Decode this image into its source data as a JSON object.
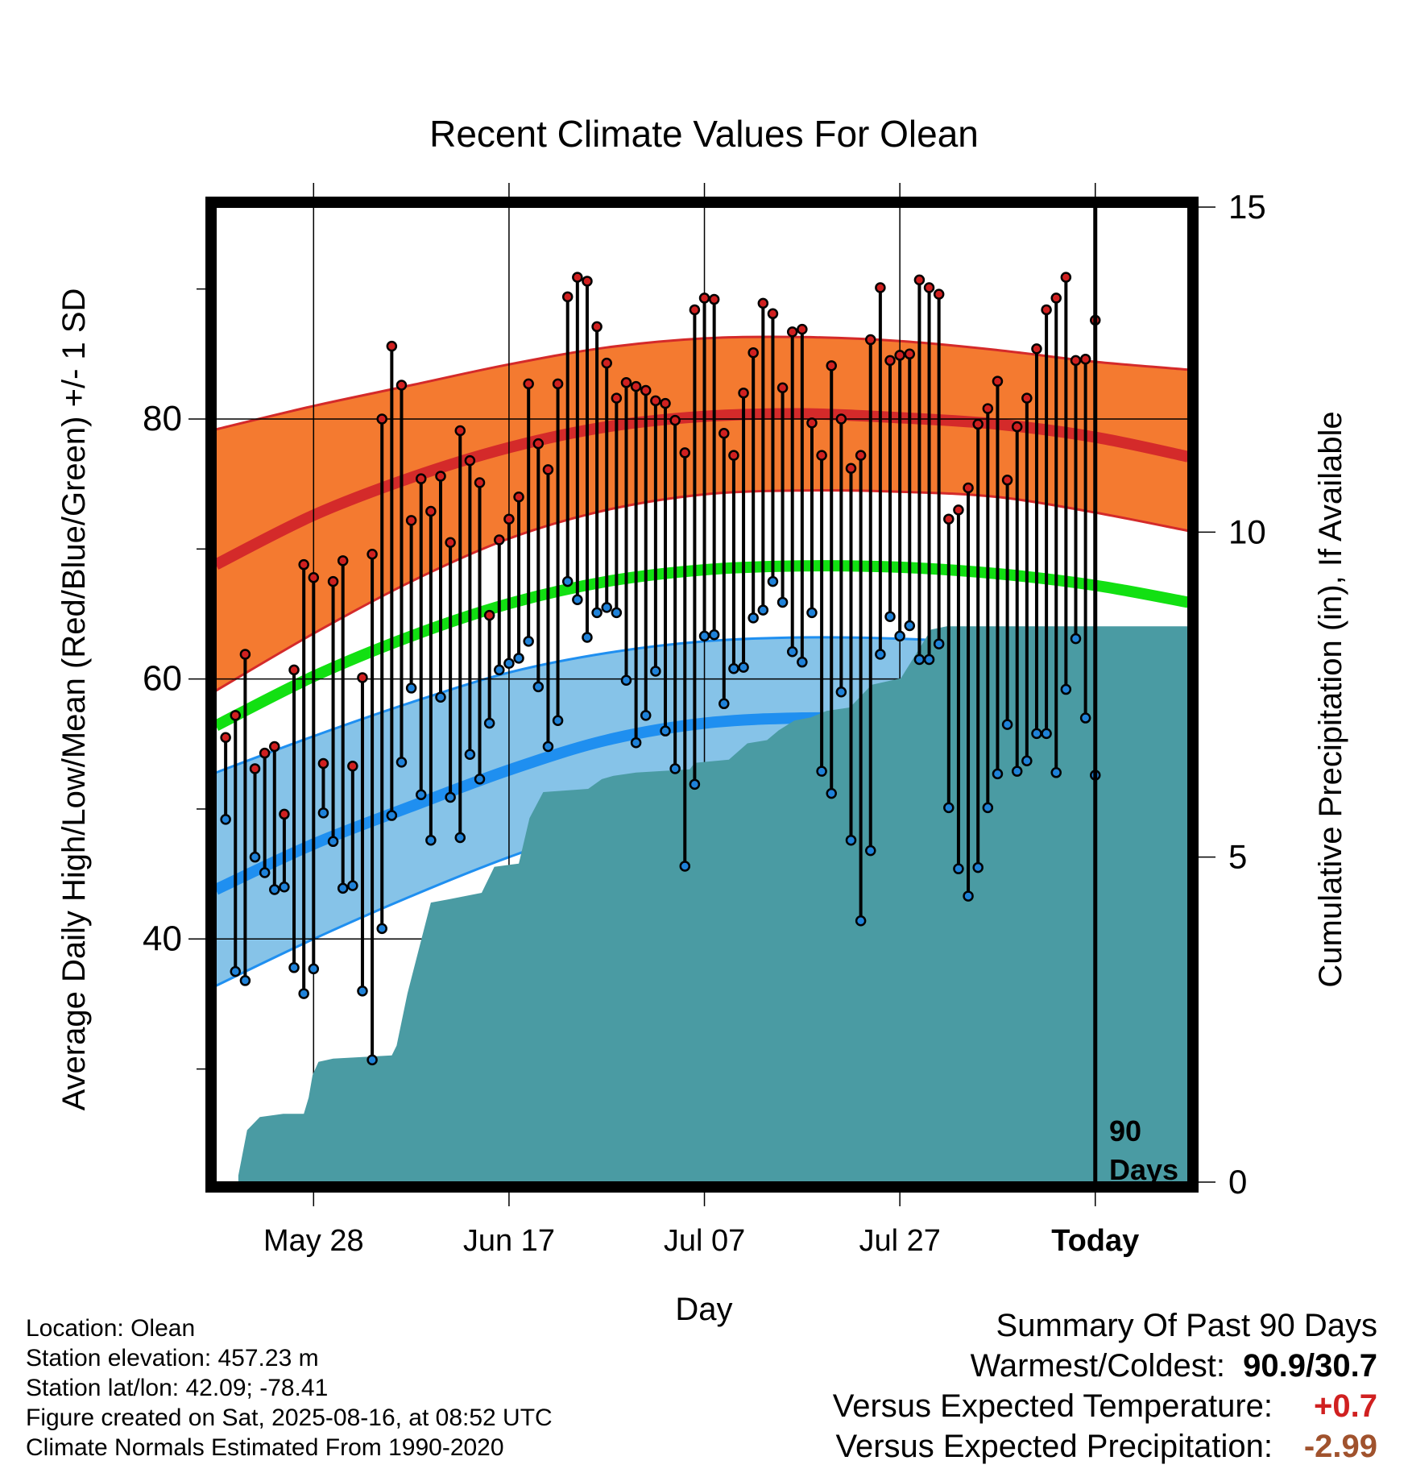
{
  "chart_data": {
    "type": "line",
    "title": "Recent Climate Values For Olean",
    "xlabel": "Day",
    "ylabel": "Average Daily High/Low/Mean (Red/Blue/Green) +/- 1 SD",
    "y2label": "Cumulative Precipitation (in), If Available",
    "x_tick_labels": [
      "May 28",
      "Jun 17",
      "Jul 07",
      "Jul 27",
      "Today"
    ],
    "x_tick_days": [
      10,
      30,
      50,
      70,
      90
    ],
    "y_ticks": [
      40,
      60,
      80
    ],
    "y2_ticks": [
      0,
      5,
      10,
      15
    ],
    "ylim": [
      21.3,
      96.3
    ],
    "y2lim": [
      0,
      15
    ],
    "xlim": [
      0,
      99.5
    ],
    "today_label": "90 Days",
    "grid": true,
    "normals": {
      "x": [
        0,
        10,
        20,
        30,
        40,
        50,
        60,
        70,
        80,
        90,
        99.5
      ],
      "high_mean": [
        68.8,
        72.6,
        75.5,
        77.8,
        79.4,
        80.2,
        80.4,
        80.1,
        79.6,
        78.6,
        77.1
      ],
      "high_upper": [
        79.2,
        81.0,
        82.6,
        84.2,
        85.5,
        86.2,
        86.3,
        86.0,
        85.3,
        84.4,
        83.8
      ],
      "high_lower": [
        59.1,
        63.5,
        67.5,
        70.8,
        73.0,
        74.2,
        74.5,
        74.4,
        74.0,
        72.8,
        71.4
      ],
      "mean": [
        56.4,
        60.2,
        63.3,
        65.8,
        67.5,
        68.4,
        68.7,
        68.6,
        68.1,
        67.2,
        65.9
      ],
      "low_mean": [
        43.8,
        47.3,
        50.2,
        53.0,
        55.3,
        56.6,
        57.0,
        56.9,
        56.6,
        55.6,
        54.2
      ],
      "low_upper": [
        52.8,
        55.6,
        58.2,
        60.5,
        62.0,
        62.9,
        63.2,
        63.1,
        62.7,
        61.9,
        60.7
      ],
      "low_lower": [
        36.4,
        40.0,
        43.3,
        46.3,
        48.8,
        50.3,
        50.8,
        50.8,
        50.5,
        49.7,
        48.3
      ]
    },
    "series": [
      {
        "name": "High",
        "color": "#d02020",
        "values": [
          55.5,
          57.2,
          61.9,
          53.1,
          54.3,
          54.8,
          49.6,
          60.7,
          68.8,
          67.8,
          53.5,
          67.5,
          69.1,
          53.3,
          60.1,
          69.6,
          80.0,
          85.6,
          82.6,
          72.2,
          75.4,
          72.9,
          75.6,
          70.5,
          79.1,
          76.8,
          75.1,
          64.9,
          70.7,
          72.3,
          74.0,
          82.7,
          78.1,
          76.1,
          82.7,
          89.4,
          90.9,
          90.6,
          87.1,
          84.3,
          81.6,
          82.8,
          82.5,
          82.2,
          81.4,
          81.2,
          79.9,
          77.4,
          88.4,
          89.3,
          89.2,
          78.9,
          77.2,
          82.0,
          85.1,
          88.9,
          88.1,
          82.4,
          86.7,
          86.9,
          79.7,
          77.2,
          84.1,
          80.0,
          76.2,
          77.2,
          86.1,
          90.1,
          84.5,
          84.9,
          85.0,
          90.7,
          90.1,
          89.6,
          72.3,
          73.0,
          74.7,
          79.6,
          80.8,
          82.9,
          75.3,
          79.4,
          81.6,
          85.4,
          88.4,
          89.3,
          90.9,
          84.5,
          84.6,
          87.6
        ]
      },
      {
        "name": "Low",
        "color": "#1f82d9",
        "values": [
          49.2,
          37.5,
          36.8,
          46.3,
          45.1,
          43.8,
          44.0,
          37.8,
          35.8,
          37.7,
          49.7,
          47.5,
          43.9,
          44.1,
          36.0,
          30.7,
          40.8,
          49.5,
          53.6,
          59.3,
          51.1,
          47.6,
          58.6,
          50.9,
          47.8,
          54.2,
          52.3,
          56.6,
          60.7,
          61.2,
          61.6,
          62.9,
          59.4,
          54.8,
          56.8,
          67.5,
          66.1,
          63.2,
          65.1,
          65.5,
          65.1,
          59.9,
          55.1,
          57.2,
          60.6,
          56.0,
          53.1,
          45.6,
          51.9,
          63.3,
          63.4,
          58.1,
          60.8,
          60.9,
          64.7,
          65.3,
          67.5,
          65.9,
          62.1,
          61.3,
          65.1,
          52.9,
          51.2,
          59.0,
          47.6,
          41.4,
          46.8,
          61.9,
          64.8,
          63.3,
          64.1,
          61.5,
          61.5,
          62.7,
          50.1,
          45.4,
          43.3,
          45.5,
          50.1,
          52.7,
          56.5,
          52.9,
          53.7,
          55.8,
          55.8,
          52.8,
          59.2,
          63.1,
          57.0,
          52.6
        ]
      },
      {
        "name": "Cumulative Precipitation",
        "color": "#4a9ba3",
        "x": [
          2.3,
          3.2,
          4.5,
          6.9,
          9.0,
          9.5,
          9.9,
          10.5,
          12.0,
          18.0,
          18.5,
          19.6,
          22.0,
          23.8,
          27.2,
          28.5,
          31.0,
          32.1,
          33.5,
          38.1,
          39.5,
          40.7,
          43.0,
          48.5,
          49.0,
          52.5,
          54.4,
          56.4,
          57.6,
          59.2,
          60.9,
          62.5,
          64.8,
          65.2,
          67.1,
          70.1,
          73.2,
          74.8,
          99.5
        ],
        "values": [
          0.1,
          0.8,
          1.0,
          1.05,
          1.05,
          1.3,
          1.65,
          1.85,
          1.9,
          1.95,
          2.1,
          2.9,
          4.3,
          4.35,
          4.45,
          4.85,
          4.9,
          5.6,
          6.0,
          6.05,
          6.2,
          6.25,
          6.3,
          6.35,
          6.45,
          6.5,
          6.75,
          6.8,
          6.95,
          7.1,
          7.15,
          7.25,
          7.3,
          7.35,
          7.65,
          7.75,
          8.5,
          8.55,
          8.55
        ]
      }
    ]
  },
  "footer": {
    "location": "Location: Olean",
    "elevation": "Station elevation: 457.23 m",
    "latlon": "Station lat/lon: 42.09; -78.41",
    "created": "Figure created on Sat, 2025-08-16, at 08:52 UTC",
    "normals": "Climate Normals Estimated From 1990-2020"
  },
  "summary": {
    "heading": "Summary Of Past 90 Days",
    "warmest_coldest_label": "Warmest/Coldest:",
    "warmest_coldest_value": "90.9/30.7",
    "temp_label": "Versus Expected Temperature:",
    "temp_value": "+0.7",
    "temp_color": "#d02020",
    "precip_label": "Versus Expected Precipitation:",
    "precip_value": "-2.99",
    "precip_color": "#a0522d"
  }
}
